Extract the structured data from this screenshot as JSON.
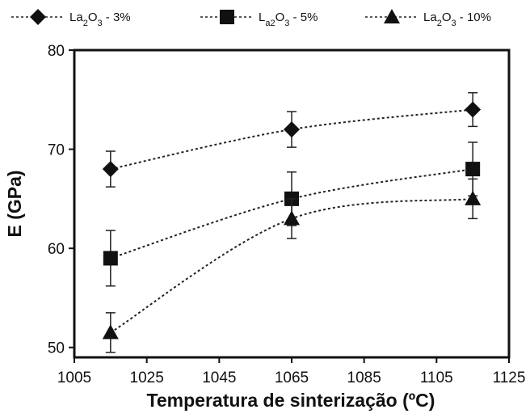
{
  "chart_data": {
    "type": "line",
    "xlabel": "Temperatura de sinterização (ºC)",
    "ylabel": "E (GPa)",
    "xlim": [
      1005,
      1125
    ],
    "ylim": [
      49,
      80
    ],
    "xticks": [
      1005,
      1025,
      1045,
      1065,
      1085,
      1105,
      1125
    ],
    "yticks": [
      50,
      60,
      70,
      80
    ],
    "x": [
      1015,
      1065,
      1115
    ],
    "grid": false,
    "legend_position": "top",
    "series": [
      {
        "name_parts": [
          "La",
          "2",
          "O",
          "3",
          " - 3%"
        ],
        "marker": "diamond",
        "values": [
          68,
          72,
          74
        ],
        "errors": [
          1.8,
          1.8,
          1.7
        ]
      },
      {
        "name_parts": [
          "L",
          "a2",
          "O",
          "3",
          " - 5%"
        ],
        "marker": "square",
        "values": [
          59,
          65,
          68
        ],
        "errors": [
          2.8,
          2.7,
          2.7
        ]
      },
      {
        "name_parts": [
          "La",
          "2",
          "O",
          "3",
          " - 10%"
        ],
        "marker": "triangle",
        "values": [
          51.5,
          63,
          65
        ],
        "errors": [
          2.0,
          2.0,
          2.0
        ]
      }
    ]
  }
}
